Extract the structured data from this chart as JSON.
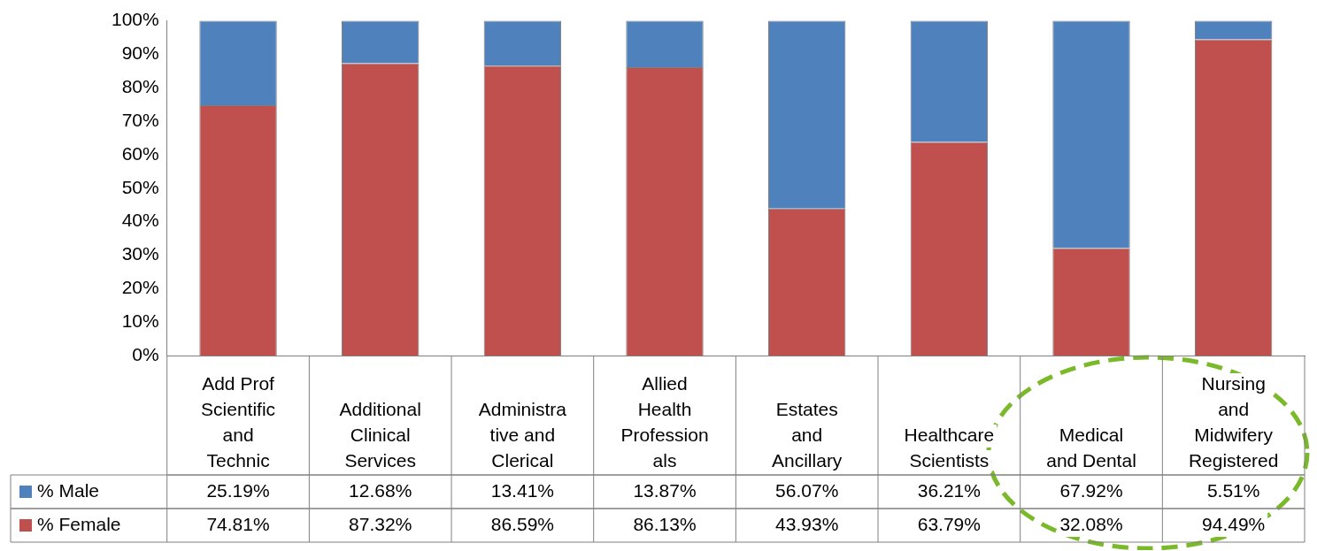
{
  "chart_data": {
    "type": "bar",
    "stacked": true,
    "categories": [
      "Add Prof Scientific and Technic",
      "Additional Clinical Services",
      "Administra tive and Clerical",
      "Allied Health Profession als",
      "Estates and Ancillary",
      "Healthcare Scientists",
      "Medical and Dental",
      "Nursing and Midwifery Registered"
    ],
    "series": [
      {
        "name": "% Female",
        "color": "#c0504d",
        "values": [
          74.81,
          87.32,
          86.59,
          86.13,
          43.93,
          63.79,
          32.08,
          94.49
        ],
        "value_labels": [
          "74.81%",
          "87.32%",
          "86.59%",
          "86.13%",
          "43.93%",
          "63.79%",
          "32.08%",
          "94.49%"
        ]
      },
      {
        "name": "% Male",
        "color": "#4f81bd",
        "values": [
          25.19,
          12.68,
          13.41,
          13.87,
          56.07,
          36.21,
          67.92,
          5.51
        ],
        "value_labels": [
          "25.19%",
          "12.68%",
          "13.41%",
          "13.87%",
          "56.07%",
          "36.21%",
          "67.92%",
          "5.51%"
        ]
      }
    ],
    "ylim": [
      0,
      100
    ],
    "yticks": [
      {
        "value": 0,
        "label": "0%"
      },
      {
        "value": 10,
        "label": "10%"
      },
      {
        "value": 20,
        "label": "20%"
      },
      {
        "value": 30,
        "label": "30%"
      },
      {
        "value": 40,
        "label": "40%"
      },
      {
        "value": 50,
        "label": "50%"
      },
      {
        "value": 60,
        "label": "60%"
      },
      {
        "value": 70,
        "label": "70%"
      },
      {
        "value": 80,
        "label": "80%"
      },
      {
        "value": 90,
        "label": "90%"
      },
      {
        "value": 100,
        "label": "100%"
      }
    ],
    "legend": "bottom",
    "data_labels": true
  }
}
